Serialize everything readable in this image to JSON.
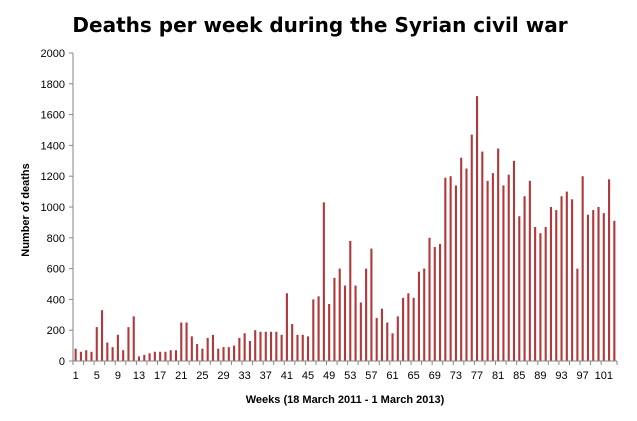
{
  "chart_data": {
    "type": "bar",
    "title": "Deaths per week during the Syrian civil war",
    "xlabel": "Weeks (18 March  2011 - 1 March 2013)",
    "ylabel": "Number of deaths",
    "ylim": [
      0,
      2000
    ],
    "y_ticks": [
      "0",
      "200",
      "400",
      "600",
      "800",
      "1000",
      "1200",
      "1400",
      "1600",
      "1800",
      "2000"
    ],
    "x_ticks": [
      "1",
      "5",
      "9",
      "13",
      "17",
      "21",
      "25",
      "29",
      "33",
      "37",
      "41",
      "45",
      "49",
      "53",
      "57",
      "61",
      "65",
      "69",
      "73",
      "77",
      "81",
      "85",
      "89",
      "93",
      "97",
      "101"
    ],
    "x_tick_weeks": [
      1,
      3,
      5,
      7,
      9,
      11,
      13,
      15,
      17,
      19,
      21,
      23,
      25,
      27,
      29,
      31,
      33,
      35,
      37,
      39,
      41,
      43,
      45,
      47,
      49,
      51,
      53,
      55,
      57,
      59,
      61,
      63,
      65,
      67,
      69,
      71,
      73,
      75,
      77,
      79,
      81,
      83,
      85,
      87,
      89,
      91,
      93,
      95,
      97,
      99,
      101
    ],
    "grid": false,
    "legend": "none",
    "bar_color": "#b0393b",
    "weeks": [
      1,
      2,
      3,
      4,
      5,
      6,
      7,
      8,
      9,
      10,
      11,
      12,
      13,
      14,
      15,
      16,
      17,
      18,
      19,
      20,
      21,
      22,
      23,
      24,
      25,
      26,
      27,
      28,
      29,
      30,
      31,
      32,
      33,
      34,
      35,
      36,
      37,
      38,
      39,
      40,
      41,
      42,
      43,
      44,
      45,
      46,
      47,
      48,
      49,
      50,
      51,
      52,
      53,
      54,
      55,
      56,
      57,
      58,
      59,
      60,
      61,
      62,
      63,
      64,
      65,
      66,
      67,
      68,
      69,
      70,
      71,
      72,
      73,
      74,
      75,
      76,
      77,
      78,
      79,
      80,
      81,
      82,
      83,
      84,
      85,
      86,
      87,
      88,
      89,
      90,
      91,
      92,
      93,
      94,
      95,
      96,
      97,
      98,
      99,
      100,
      101,
      102,
      103
    ],
    "values": [
      80,
      60,
      70,
      60,
      220,
      330,
      120,
      90,
      170,
      70,
      220,
      290,
      30,
      40,
      50,
      60,
      60,
      60,
      70,
      70,
      250,
      250,
      160,
      110,
      80,
      150,
      170,
      80,
      90,
      90,
      100,
      150,
      180,
      130,
      200,
      190,
      190,
      190,
      190,
      170,
      440,
      240,
      170,
      170,
      160,
      400,
      420,
      1030,
      370,
      540,
      600,
      490,
      780,
      490,
      380,
      600,
      730,
      280,
      340,
      250,
      180,
      290,
      410,
      440,
      410,
      580,
      600,
      800,
      740,
      760,
      1190,
      1200,
      1140,
      1320,
      1250,
      1470,
      1720,
      1360,
      1170,
      1220,
      1380,
      1140,
      1210,
      1300,
      940,
      1070,
      1170,
      870,
      830,
      870,
      1000,
      980,
      1070,
      1100,
      1050,
      600,
      1200,
      950,
      980,
      1000,
      960,
      1180,
      910
    ]
  },
  "colors": {
    "bars": "#b0393b",
    "axes": "#868686",
    "text": "#000000"
  }
}
